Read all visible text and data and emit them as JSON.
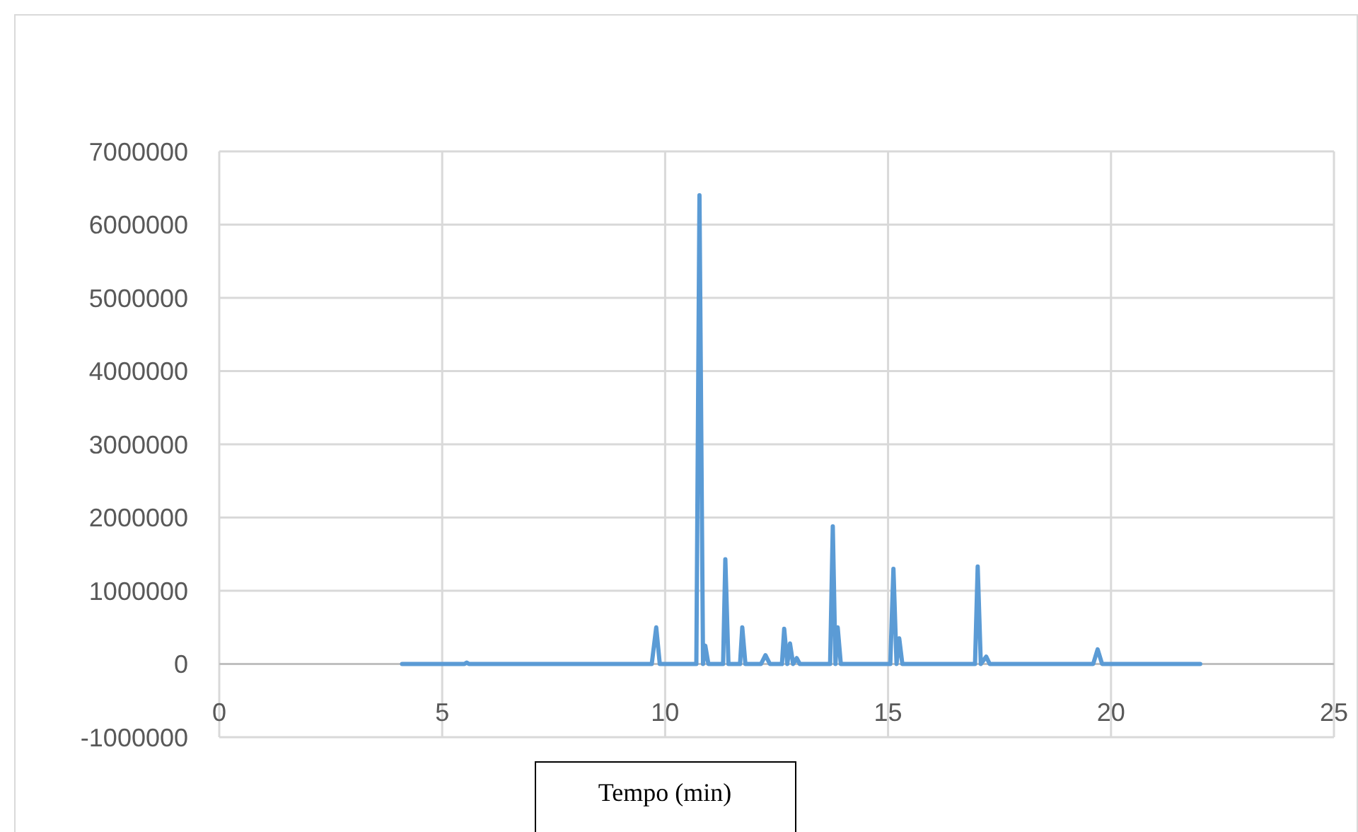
{
  "chart_data": {
    "type": "line",
    "xlabel": "Tempo (min)",
    "x": [
      4.1,
      5.5,
      5.55,
      5.6,
      9.7,
      9.8,
      9.88,
      10.7,
      10.77,
      10.85,
      10.9,
      10.97,
      11.3,
      11.35,
      11.42,
      11.68,
      11.73,
      11.8,
      12.15,
      12.25,
      12.35,
      12.62,
      12.67,
      12.74,
      12.8,
      12.87,
      12.95,
      13.02,
      13.7,
      13.76,
      13.82,
      13.87,
      13.94,
      15.05,
      15.12,
      15.19,
      15.25,
      15.32,
      16.95,
      17.01,
      17.08,
      17.2,
      17.28,
      19.6,
      19.7,
      19.8,
      22.0
    ],
    "series": [
      {
        "color": "#5b9bd5",
        "values": [
          0,
          0,
          20000,
          0,
          0,
          500000,
          0,
          0,
          6400000,
          0,
          250000,
          0,
          0,
          1430000,
          0,
          0,
          500000,
          0,
          0,
          120000,
          0,
          0,
          480000,
          0,
          280000,
          0,
          80000,
          0,
          0,
          1880000,
          0,
          500000,
          0,
          0,
          1300000,
          0,
          350000,
          0,
          0,
          1330000,
          0,
          100000,
          0,
          0,
          200000,
          0,
          0
        ]
      }
    ],
    "xlim": [
      0,
      25
    ],
    "xticks": [
      0,
      5,
      10,
      15,
      20,
      25
    ],
    "ylim": [
      -1000000,
      7000000
    ],
    "yticks": [
      -1000000,
      0,
      1000000,
      2000000,
      3000000,
      4000000,
      5000000,
      6000000,
      7000000
    ],
    "grid": true,
    "marker": "none",
    "line_style": "solid"
  }
}
